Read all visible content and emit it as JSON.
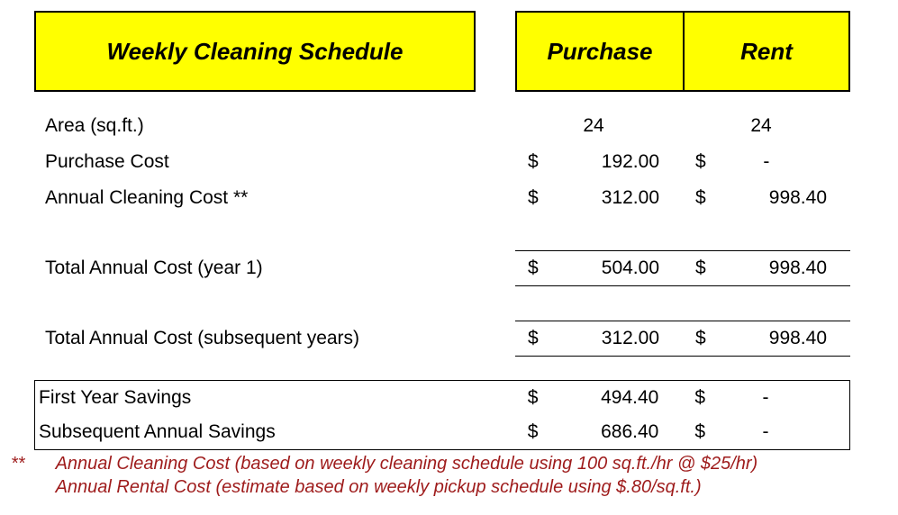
{
  "header": {
    "title": "Weekly Cleaning Schedule",
    "col_purchase": "Purchase",
    "col_rent": "Rent"
  },
  "rows": {
    "area": {
      "label": "Area (sq.ft.)",
      "purchase": "24",
      "rent": "24"
    },
    "purchase_cost": {
      "label": "Purchase Cost",
      "p_cur": "$",
      "p_val": "192.00",
      "r_cur": "$",
      "r_val": "-"
    },
    "annual_cleaning": {
      "label": "Annual Cleaning Cost **",
      "p_cur": "$",
      "p_val": "312.00",
      "r_cur": "$",
      "r_val": "998.40"
    },
    "total_y1": {
      "label": "Total Annual Cost (year 1)",
      "p_cur": "$",
      "p_val": "504.00",
      "r_cur": "$",
      "r_val": "998.40"
    },
    "total_sub": {
      "label": "Total Annual Cost (subsequent years)",
      "p_cur": "$",
      "p_val": "312.00",
      "r_cur": "$",
      "r_val": "998.40"
    },
    "savings_y1": {
      "label": "First Year Savings",
      "p_cur": "$",
      "p_val": "494.40",
      "r_cur": "$",
      "r_val": "-"
    },
    "savings_sub": {
      "label": "Subsequent Annual Savings",
      "p_cur": "$",
      "p_val": "686.40",
      "r_cur": "$",
      "r_val": "-"
    }
  },
  "footnote": {
    "mark": "**",
    "line1": "Annual Cleaning Cost (based on weekly cleaning schedule using 100 sq.ft./hr @ $25/hr)",
    "line2": "Annual Rental Cost (estimate based on weekly pickup schedule using $.80/sq.ft.)"
  },
  "style": {
    "header_bg": "#ffff00",
    "footnote_color": "#9e1b1b"
  }
}
